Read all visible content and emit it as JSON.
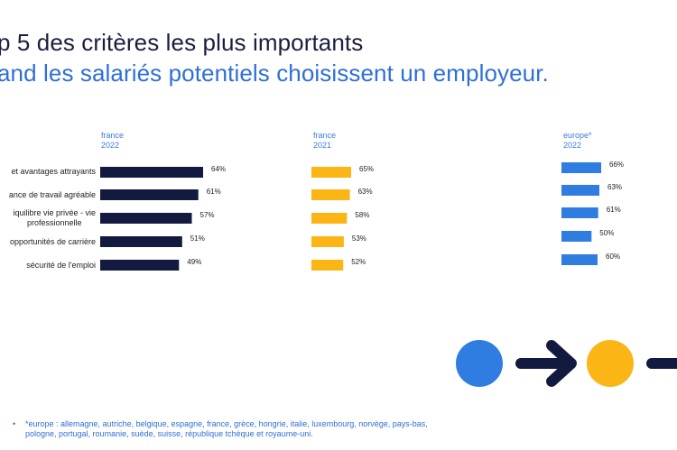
{
  "header": {
    "line1": "p 5 des critères les plus importants",
    "line2": "and les salariés potentiels choisissent un employeur."
  },
  "chart_data": {
    "type": "bar",
    "orientation": "horizontal",
    "categories": [
      "et avantages attrayants",
      "ance de travail agréable",
      "iquilibre vie privée - vie professionnelle",
      "opportunités de carrière",
      "sécurité de l'emploi"
    ],
    "category_lines": [
      [
        "et avantages attrayants"
      ],
      [
        "ance de travail agréable"
      ],
      [
        "iquilibre vie privée - vie",
        "professionnelle"
      ],
      [
        "opportunités de carrière"
      ],
      [
        "sécurité de l'emploi"
      ]
    ],
    "series": [
      {
        "name": "france 2022",
        "label": [
          "france",
          "2022"
        ],
        "color": "#131a3f",
        "values": [
          64,
          61,
          57,
          51,
          49
        ],
        "value_labels": [
          "64%",
          "61%",
          "57%",
          "51%",
          "49%"
        ]
      },
      {
        "name": "france 2021",
        "label": [
          "france",
          "2021"
        ],
        "color": "#fbb515",
        "values": [
          65,
          63,
          58,
          53,
          52
        ],
        "value_labels": [
          "65%",
          "63%",
          "58%",
          "53%",
          "52%"
        ]
      },
      {
        "name": "europe* 2022",
        "label": [
          "europe*",
          "2022"
        ],
        "color": "#2f7de1",
        "values": [
          66,
          63,
          61,
          50,
          60
        ],
        "value_labels": [
          "66%",
          "63%",
          "61%",
          "50%",
          "60%"
        ]
      }
    ]
  },
  "decor": {
    "colors": {
      "circle_blue": "#2f7de1",
      "circle_yellow": "#fbb515",
      "arrow": "#131a3f"
    },
    "icons": [
      "circle-blue",
      "arrow-right",
      "circle-yellow",
      "arrow-right"
    ]
  },
  "footnote": {
    "star": "•",
    "lines": [
      "*europe : allemagne, autriche, belgique, espagne, france, grèce, hongrie, italie, luxembourg, norvège, pays-bas,",
      "pologne, portugal, roumanie, suède, suisse, république tchèque et royaume-uni."
    ]
  }
}
